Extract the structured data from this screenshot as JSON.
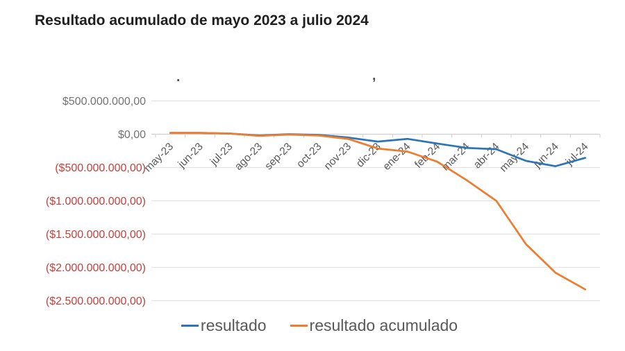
{
  "chart_data": {
    "type": "line",
    "title": "Resultado acumulado de mayo 2023 a julio 2024",
    "categories": [
      "may-23",
      "jun-23",
      "jul-23",
      "ago-23",
      "sep-23",
      "oct-23",
      "nov-23",
      "dic-23",
      "ene-24",
      "feb-24",
      "mar-24",
      "abr-24",
      "may-24",
      "jun-24",
      "jul-24"
    ],
    "series": [
      {
        "name": "resultado",
        "color": "#2E75B6",
        "values": [
          20000000,
          20000000,
          10000000,
          -20000000,
          0,
          -10000000,
          -50000000,
          -110000000,
          -70000000,
          -140000000,
          -205000000,
          -225000000,
          -400000000,
          -480000000,
          -355000000
        ]
      },
      {
        "name": "resultado acumulado",
        "color": "#ED7D31",
        "values": [
          20000000,
          20000000,
          10000000,
          -25000000,
          -5000000,
          -20000000,
          -70000000,
          -215000000,
          -260000000,
          -410000000,
          -690000000,
          -1000000000,
          -1650000000,
          -2080000000,
          -2330000000
        ]
      }
    ],
    "y_axis": {
      "min": -2500000000,
      "max": 500000000,
      "step": 500000000,
      "ticks": [
        {
          "label": "$500.000.000,00",
          "value": 500000000
        },
        {
          "label": "$0,00",
          "value": 0
        },
        {
          "label": "($500.000.000,00)",
          "value": -500000000
        },
        {
          "label": "($1.000.000.000,00)",
          "value": -1000000000
        },
        {
          "label": "($1.500.000.000,00)",
          "value": -1500000000
        },
        {
          "label": "($2.000.000.000,00)",
          "value": -2000000000
        },
        {
          "label": "($2.500.000.000,00)",
          "value": -2500000000
        }
      ]
    },
    "legend": {
      "position": "bottom"
    },
    "grid": true,
    "colors": {
      "positive_label": "#737373",
      "negative_label": "#C5413D",
      "grid": "#E3E3E3",
      "axis": "#CFCFCF",
      "x_label": "#595959",
      "legend_text": "#595959",
      "title": "#1F1F1F"
    }
  },
  "artifacts": [
    {
      "glyph": "."
    },
    {
      "glyph": ","
    }
  ]
}
